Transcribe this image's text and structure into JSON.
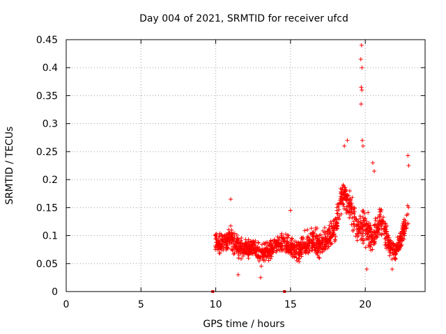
{
  "chart_data": {
    "type": "scatter",
    "title": "Day 004 of 2021, SRMTID for receiver ufcd",
    "xlabel": "GPS time / hours",
    "ylabel": "SRMTID / TECUs",
    "xlim": [
      0,
      24
    ],
    "ylim": [
      0,
      0.45
    ],
    "x_ticks": [
      0,
      5,
      10,
      15,
      20
    ],
    "y_ticks": [
      0,
      0.05,
      0.1,
      0.15,
      0.2,
      0.25,
      0.3,
      0.35,
      0.4,
      0.45
    ],
    "x_tick_labels": [
      "0",
      "5",
      "10",
      "15",
      "20"
    ],
    "y_tick_labels": [
      "0",
      "0.05",
      "0.1",
      "0.15",
      "0.2",
      "0.25",
      "0.3",
      "0.35",
      "0.4",
      "0.45"
    ],
    "grid": true,
    "marker": "+",
    "color": "#ff0000",
    "series": [
      {
        "name": "SRMTID",
        "envelope": [
          {
            "x": 9.95,
            "y": 0.09,
            "spread": 0.025
          },
          {
            "x": 10.5,
            "y": 0.085,
            "spread": 0.03
          },
          {
            "x": 11.0,
            "y": 0.095,
            "spread": 0.03
          },
          {
            "x": 11.5,
            "y": 0.08,
            "spread": 0.028
          },
          {
            "x": 12.0,
            "y": 0.075,
            "spread": 0.025
          },
          {
            "x": 12.5,
            "y": 0.08,
            "spread": 0.022
          },
          {
            "x": 13.0,
            "y": 0.065,
            "spread": 0.025
          },
          {
            "x": 13.5,
            "y": 0.07,
            "spread": 0.025
          },
          {
            "x": 14.0,
            "y": 0.085,
            "spread": 0.022
          },
          {
            "x": 14.5,
            "y": 0.085,
            "spread": 0.025
          },
          {
            "x": 15.0,
            "y": 0.08,
            "spread": 0.03
          },
          {
            "x": 15.5,
            "y": 0.07,
            "spread": 0.025
          },
          {
            "x": 16.0,
            "y": 0.085,
            "spread": 0.03
          },
          {
            "x": 16.5,
            "y": 0.09,
            "spread": 0.03
          },
          {
            "x": 17.0,
            "y": 0.085,
            "spread": 0.03
          },
          {
            "x": 17.5,
            "y": 0.095,
            "spread": 0.03
          },
          {
            "x": 18.0,
            "y": 0.11,
            "spread": 0.035
          },
          {
            "x": 18.5,
            "y": 0.18,
            "spread": 0.04
          },
          {
            "x": 19.0,
            "y": 0.15,
            "spread": 0.04
          },
          {
            "x": 19.5,
            "y": 0.11,
            "spread": 0.03
          },
          {
            "x": 20.0,
            "y": 0.12,
            "spread": 0.05
          },
          {
            "x": 20.5,
            "y": 0.09,
            "spread": 0.03
          },
          {
            "x": 21.0,
            "y": 0.135,
            "spread": 0.035
          },
          {
            "x": 21.5,
            "y": 0.09,
            "spread": 0.03
          },
          {
            "x": 22.0,
            "y": 0.07,
            "spread": 0.025
          },
          {
            "x": 22.5,
            "y": 0.1,
            "spread": 0.03
          },
          {
            "x": 22.9,
            "y": 0.14,
            "spread": 0.045
          }
        ],
        "outliers": [
          {
            "x": 19.75,
            "y": 0.44
          },
          {
            "x": 19.7,
            "y": 0.415
          },
          {
            "x": 19.78,
            "y": 0.4
          },
          {
            "x": 19.73,
            "y": 0.365
          },
          {
            "x": 19.77,
            "y": 0.36
          },
          {
            "x": 19.72,
            "y": 0.335
          },
          {
            "x": 19.8,
            "y": 0.27
          },
          {
            "x": 19.85,
            "y": 0.26
          },
          {
            "x": 18.8,
            "y": 0.27
          },
          {
            "x": 18.6,
            "y": 0.26
          },
          {
            "x": 22.85,
            "y": 0.243
          },
          {
            "x": 22.9,
            "y": 0.225
          },
          {
            "x": 20.5,
            "y": 0.23
          },
          {
            "x": 20.6,
            "y": 0.215
          },
          {
            "x": 11.0,
            "y": 0.165
          },
          {
            "x": 15.0,
            "y": 0.145
          },
          {
            "x": 11.5,
            "y": 0.03
          },
          {
            "x": 13.0,
            "y": 0.025
          },
          {
            "x": 20.1,
            "y": 0.04
          },
          {
            "x": 21.8,
            "y": 0.04
          }
        ]
      }
    ],
    "zero_markers": [
      9.8,
      14.6
    ],
    "total_points": 1400
  }
}
